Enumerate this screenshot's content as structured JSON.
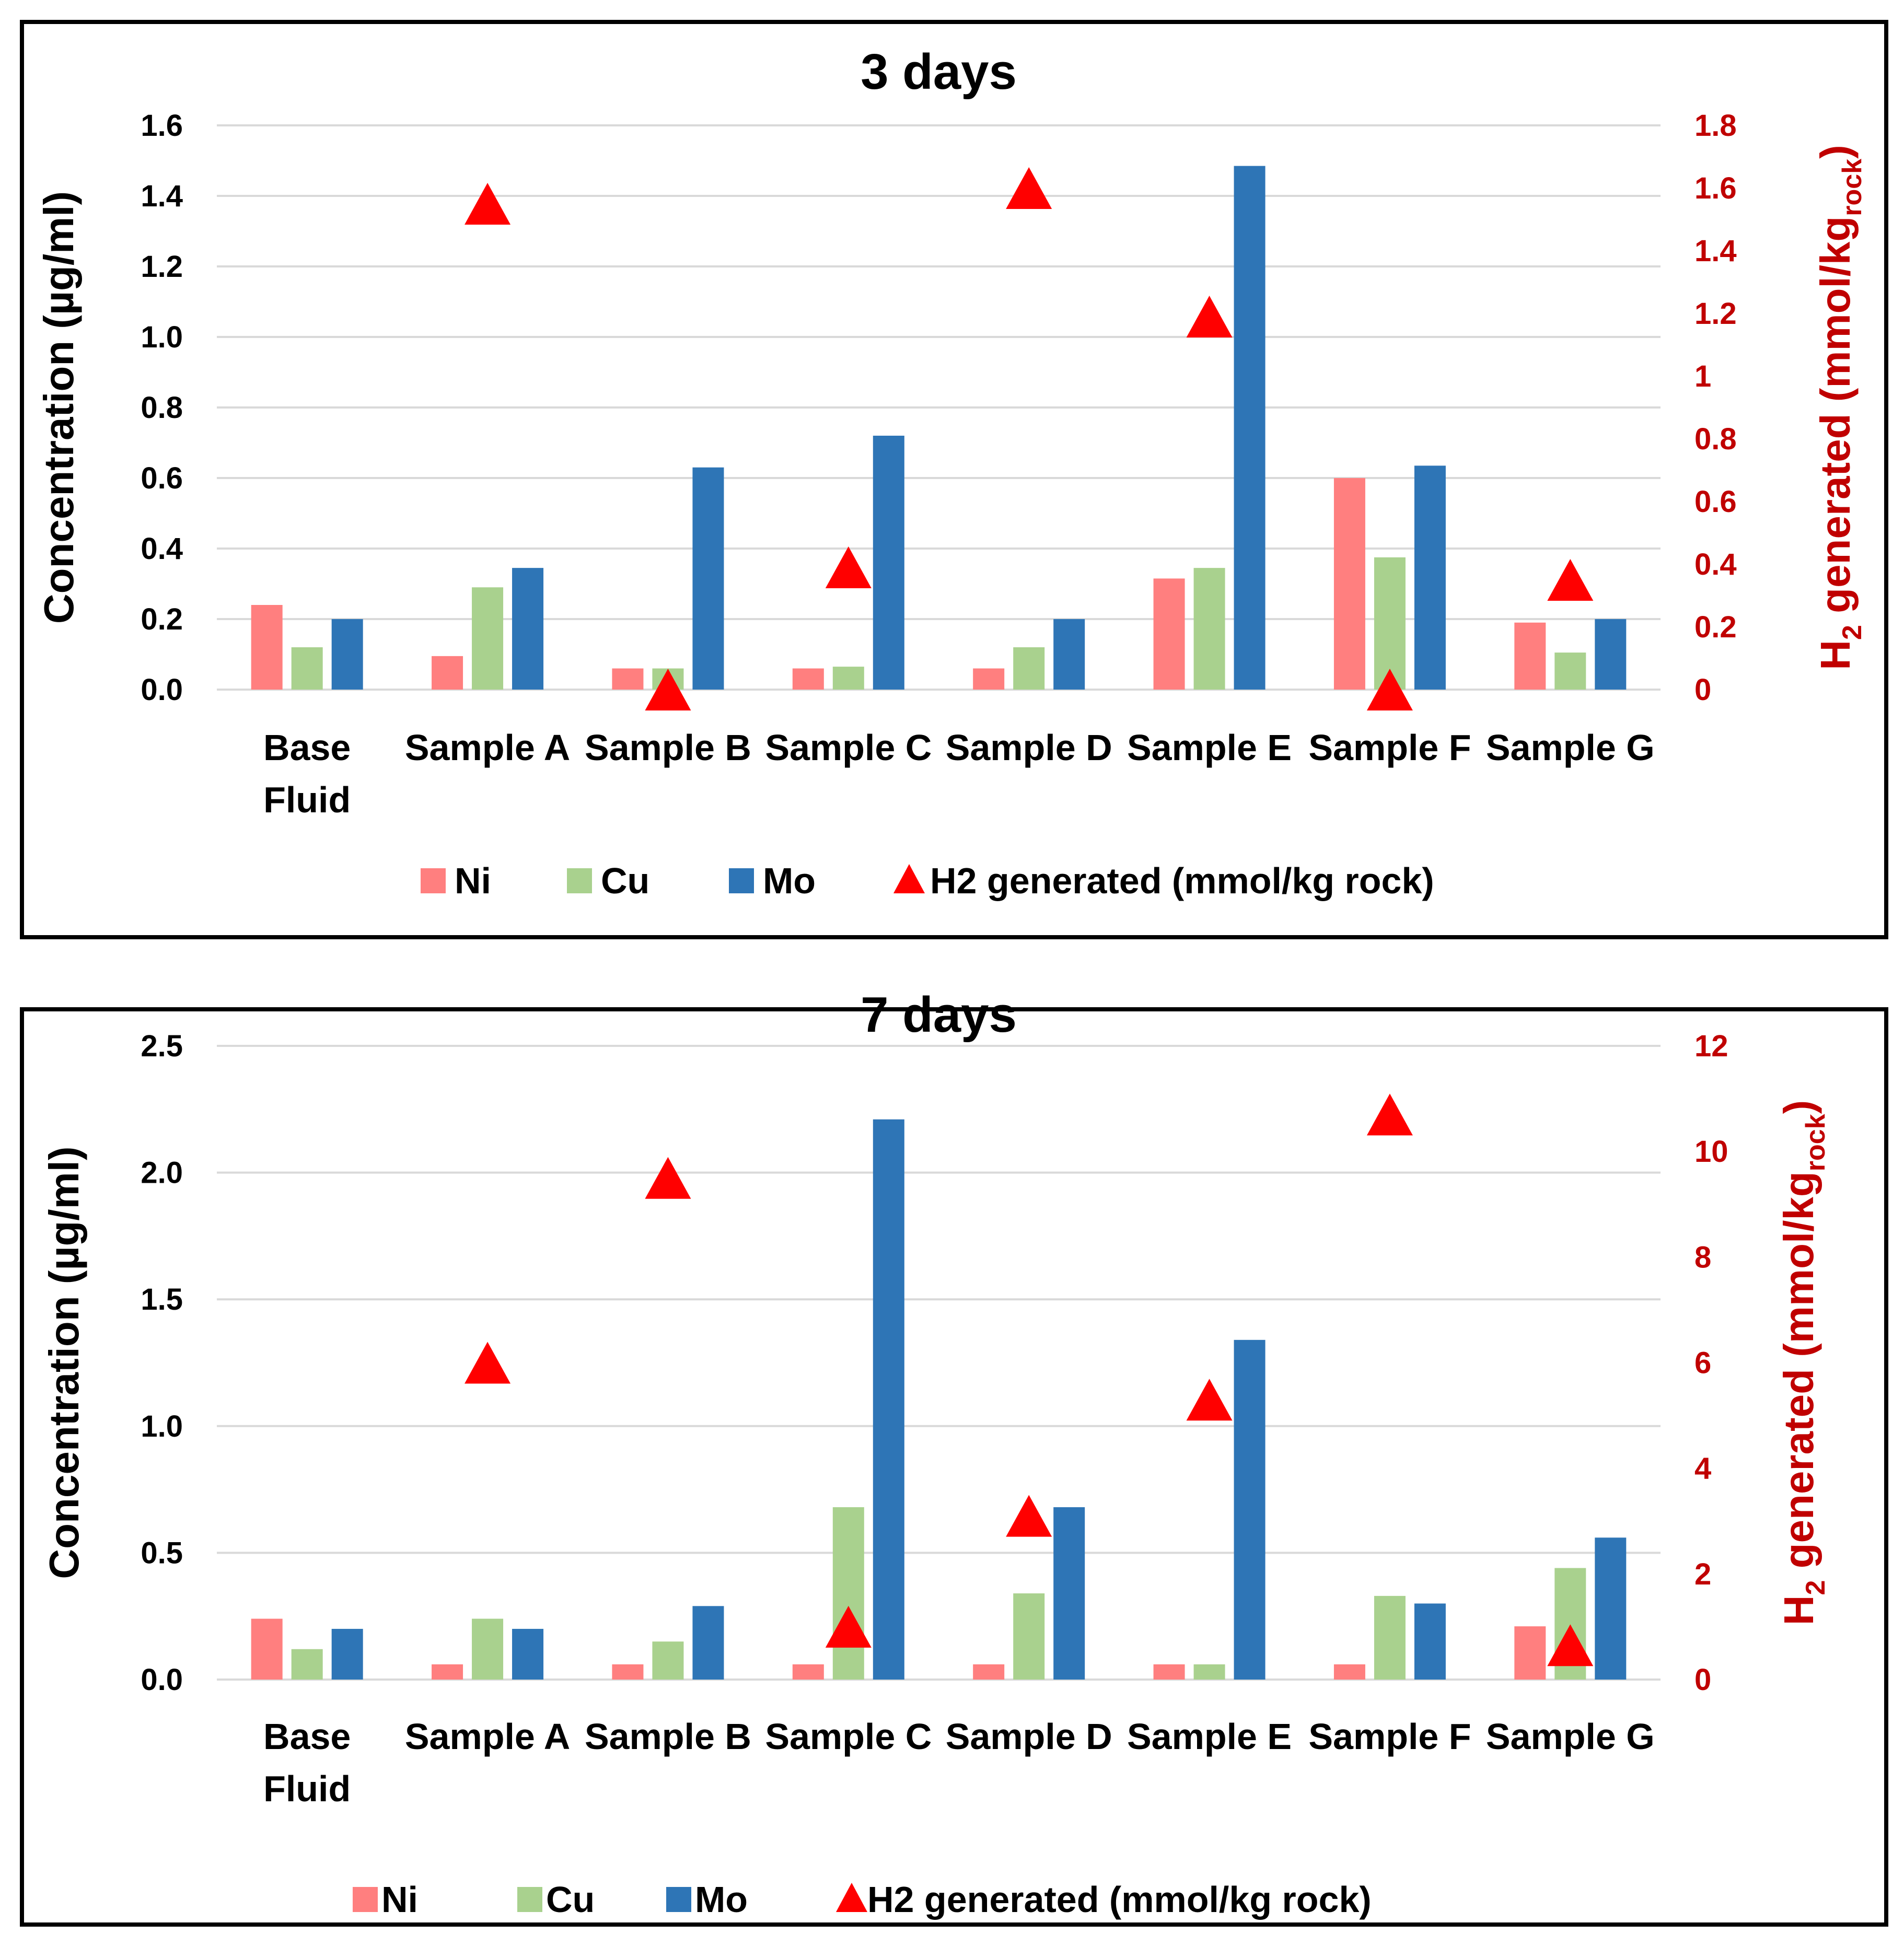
{
  "colors": {
    "ni": "#ff7f7f",
    "cu": "#a9d18e",
    "mo": "#2e75b6",
    "h2": "#ff0000",
    "right_axis": "#c00000",
    "grid": "#d9d9d9"
  },
  "chart_data": [
    {
      "type": "bar",
      "title": "3 days",
      "categories": [
        [
          "Base",
          "Fluid"
        ],
        [
          "Sample A"
        ],
        [
          "Sample B"
        ],
        [
          "Sample C"
        ],
        [
          "Sample D"
        ],
        [
          "Sample E"
        ],
        [
          "Sample F"
        ],
        [
          "Sample G"
        ]
      ],
      "ylabel": "Concentration (µg/ml)",
      "y2label": {
        "main": "H",
        "sub": "2",
        "rest": " generated (mmol/kg",
        "sub2": "rock",
        "close": ")"
      },
      "ylim": [
        0,
        1.6
      ],
      "yticks": [
        "0.0",
        "0.2",
        "0.4",
        "0.6",
        "0.8",
        "1.0",
        "1.2",
        "1.4",
        "1.6"
      ],
      "y2lim": [
        0,
        1.8
      ],
      "y2ticks": [
        "0",
        "0.2",
        "0.4",
        "0.6",
        "0.8",
        "1",
        "1.2",
        "1.4",
        "1.6",
        "1.8"
      ],
      "series": [
        {
          "name": "Ni",
          "kind": "bar",
          "values": [
            0.24,
            0.095,
            0.06,
            0.06,
            0.06,
            0.315,
            0.6,
            0.19
          ]
        },
        {
          "name": "Cu",
          "kind": "bar",
          "values": [
            0.12,
            0.29,
            0.06,
            0.065,
            0.12,
            0.345,
            0.375,
            0.105
          ]
        },
        {
          "name": "Mo",
          "kind": "bar",
          "values": [
            0.2,
            0.345,
            0.63,
            0.72,
            0.2,
            1.485,
            0.635,
            0.2
          ]
        },
        {
          "name": "H2 generated (mmol/kg rock)",
          "kind": "marker",
          "axis": "right",
          "values": [
            null,
            1.55,
            0.0,
            0.39,
            1.6,
            1.19,
            0.0,
            0.35
          ]
        }
      ],
      "legend": [
        "Ni",
        "Cu",
        "Mo",
        "H2 generated (mmol/kg rock)"
      ]
    },
    {
      "type": "bar",
      "title": "7 days",
      "categories": [
        [
          "Base",
          "Fluid"
        ],
        [
          "Sample A"
        ],
        [
          "Sample B"
        ],
        [
          "Sample C"
        ],
        [
          "Sample D"
        ],
        [
          "Sample E"
        ],
        [
          "Sample F"
        ],
        [
          "Sample G"
        ]
      ],
      "ylabel": "Concentration (µg/ml)",
      "y2label": {
        "main": "H",
        "sub": "2",
        "rest": " generated (mmol/kg",
        "sub2": "rock",
        "close": ")"
      },
      "ylim": [
        0,
        2.5
      ],
      "yticks": [
        "0.0",
        "0.5",
        "1.0",
        "1.5",
        "2.0",
        "2.5"
      ],
      "y2lim": [
        0,
        12
      ],
      "y2ticks": [
        "0",
        "2",
        "4",
        "6",
        "8",
        "10",
        "12"
      ],
      "series": [
        {
          "name": "Ni",
          "kind": "bar",
          "values": [
            0.24,
            0.06,
            0.06,
            0.06,
            0.06,
            0.06,
            0.06,
            0.21
          ]
        },
        {
          "name": "Cu",
          "kind": "bar",
          "values": [
            0.12,
            0.24,
            0.15,
            0.68,
            0.34,
            0.06,
            0.33,
            0.44
          ]
        },
        {
          "name": "Mo",
          "kind": "bar",
          "values": [
            0.2,
            0.2,
            0.29,
            2.21,
            0.68,
            1.34,
            0.3,
            0.56
          ]
        },
        {
          "name": "H2 generated (mmol/kg rock)",
          "kind": "marker",
          "axis": "right",
          "values": [
            null,
            6.0,
            9.5,
            1.0,
            3.1,
            5.3,
            10.7,
            0.65
          ]
        }
      ],
      "legend": [
        "Ni",
        "Cu",
        "Mo",
        "H2 generated (mmol/kg rock)"
      ]
    }
  ]
}
